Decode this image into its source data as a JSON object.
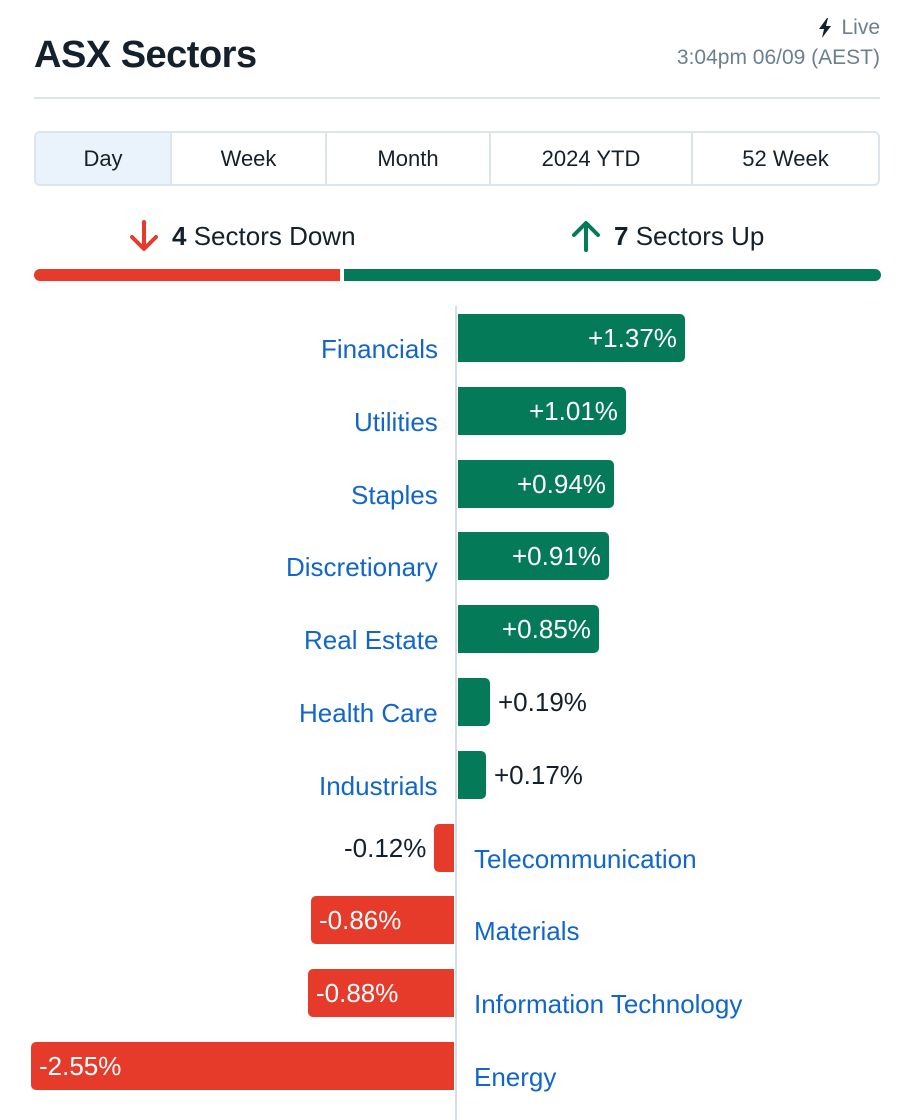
{
  "header": {
    "title": "ASX Sectors",
    "live_label": "Live",
    "live_icon": "bolt-icon",
    "timestamp": "3:04pm 06/09 (AEST)"
  },
  "tabs": [
    {
      "label": "Day",
      "active": true
    },
    {
      "label": "Week",
      "active": false
    },
    {
      "label": "Month",
      "active": false
    },
    {
      "label": "2024 YTD",
      "active": false
    },
    {
      "label": "52 Week",
      "active": false
    }
  ],
  "summary": {
    "down_count": "4",
    "down_label": "Sectors Down",
    "up_count": "7",
    "up_label": "Sectors Up",
    "down_color": "#e63a2a",
    "up_color": "#057a59"
  },
  "chart_data": {
    "type": "bar",
    "orientation": "horizontal",
    "categories": [
      "Financials",
      "Utilities",
      "Staples",
      "Discretionary",
      "Real Estate",
      "Health Care",
      "Industrials",
      "Telecommunication",
      "Materials",
      "Information Technology",
      "Energy"
    ],
    "values": [
      1.37,
      1.01,
      0.94,
      0.91,
      0.85,
      0.19,
      0.17,
      -0.12,
      -0.86,
      -0.88,
      -2.55
    ],
    "labels": [
      "+1.37%",
      "+1.01%",
      "+0.94%",
      "+0.91%",
      "+0.85%",
      "+0.19%",
      "+0.17%",
      "-0.12%",
      "-0.86%",
      "-0.88%",
      "-2.55%"
    ],
    "positive_color": "#057a59",
    "negative_color": "#e63a2a",
    "unit": "%"
  }
}
